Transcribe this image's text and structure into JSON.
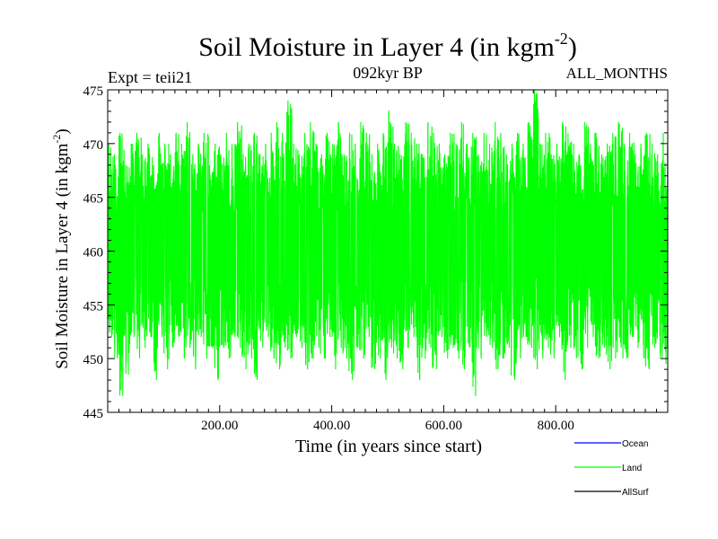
{
  "chart_data": {
    "type": "line",
    "title_main": "Soil Moisture in Layer 4 (in kgm",
    "title_sup": "-2",
    "title_close": ")",
    "left_note": "Expt = teii21",
    "center_note": "092kyr BP",
    "right_note": "ALL_MONTHS",
    "xlabel": "Time (in years since start)",
    "ylabel_main": "Soil Moisture in Layer 4 (in kgm",
    "ylabel_sup": "-2",
    "ylabel_close": ")",
    "xlim": [
      0,
      1000
    ],
    "ylim": [
      445,
      475
    ],
    "x_ticks": [
      {
        "value": 200,
        "label": "200.00"
      },
      {
        "value": 400,
        "label": "400.00"
      },
      {
        "value": 600,
        "label": "600.00"
      },
      {
        "value": 800,
        "label": "800.00"
      }
    ],
    "y_ticks": [
      {
        "value": 445,
        "label": "445"
      },
      {
        "value": 450,
        "label": "450"
      },
      {
        "value": 455,
        "label": "455"
      },
      {
        "value": 460,
        "label": "460"
      },
      {
        "value": 465,
        "label": "465"
      },
      {
        "value": 470,
        "label": "470"
      },
      {
        "value": 475,
        "label": "475"
      }
    ],
    "series": [
      {
        "name": "Ocean",
        "color": "#0000ff",
        "x": [],
        "y": []
      },
      {
        "name": "Land",
        "color": "#00ff00",
        "x": [
          0,
          10,
          20,
          30,
          40,
          50,
          60,
          70,
          80,
          90,
          100,
          110,
          120,
          130,
          140,
          150,
          160,
          170,
          180,
          190,
          200,
          210,
          220,
          230,
          240,
          250,
          260,
          270,
          280,
          290,
          300,
          310,
          320,
          330,
          340,
          350,
          360,
          370,
          380,
          390,
          400,
          410,
          420,
          430,
          440,
          450,
          460,
          470,
          480,
          490,
          500,
          510,
          520,
          530,
          540,
          550,
          560,
          570,
          580,
          590,
          600,
          610,
          620,
          630,
          640,
          650,
          660,
          670,
          680,
          690,
          700,
          710,
          720,
          730,
          740,
          750,
          760,
          770,
          780,
          790,
          800,
          810,
          820,
          830,
          840,
          850,
          860,
          870,
          880,
          890,
          900,
          910,
          920,
          930,
          940,
          950,
          960,
          970,
          980,
          990,
          1000
        ],
        "y_min": [
          452,
          450,
          446.5,
          448.5,
          452,
          450,
          451,
          452,
          448,
          452,
          449,
          451,
          452,
          450,
          451,
          449,
          452,
          450,
          451,
          448,
          451,
          450,
          452,
          451,
          449,
          450,
          448,
          451,
          452,
          450,
          449,
          451,
          450,
          452,
          451,
          449,
          450,
          451,
          450,
          452,
          449,
          451,
          450,
          448,
          451,
          450,
          452,
          449,
          450,
          448,
          451,
          450,
          449,
          451,
          452,
          448,
          450,
          451,
          449,
          452,
          450,
          451,
          450,
          449,
          451,
          446.5,
          450,
          452,
          451,
          449,
          450,
          451,
          448,
          450,
          452,
          451,
          449,
          450,
          451,
          450,
          452,
          448,
          451,
          450,
          449,
          451,
          452,
          450,
          451,
          449,
          450,
          451,
          450,
          452,
          451,
          450,
          449,
          451,
          450,
          449.5,
          452
        ],
        "y_max": [
          470,
          469,
          471,
          468,
          470,
          471,
          469,
          470,
          468,
          471,
          470,
          469,
          471,
          470,
          472,
          469,
          470,
          471,
          468,
          470,
          469,
          471,
          470,
          472,
          469,
          470,
          471,
          469,
          470,
          471,
          472,
          471,
          474,
          470,
          469,
          471,
          472,
          470,
          469,
          471,
          470,
          472,
          469,
          471,
          470,
          472,
          471,
          469,
          470,
          471,
          473,
          470,
          469,
          472,
          471,
          470,
          469,
          472,
          471,
          470,
          469,
          471,
          470,
          472,
          470,
          471,
          469,
          471,
          470,
          472,
          471,
          469,
          470,
          471,
          470,
          472,
          475,
          470,
          471,
          469,
          470,
          472,
          471,
          470,
          469,
          472,
          470,
          471,
          469,
          470,
          471,
          472,
          470,
          471,
          469,
          470,
          471,
          470,
          469,
          471,
          470
        ]
      },
      {
        "name": "AllSurf",
        "color": "#000000",
        "x": [],
        "y": []
      }
    ],
    "legend_position": "bottom-right",
    "grid": false
  }
}
